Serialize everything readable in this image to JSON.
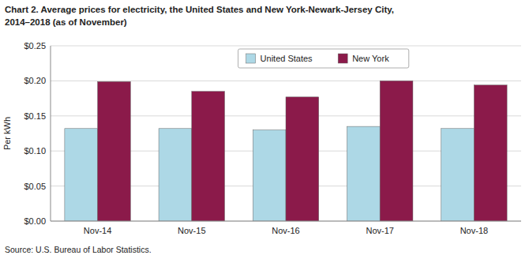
{
  "chart_data": {
    "type": "bar",
    "title": "Chart 2. Average prices for electricity, the United States and New York-Newark-Jersey City,",
    "subtitle": "2014–2018 (as of November)",
    "y_label": "Per kWh",
    "source": "Source: U.S. Bureau of Labor Statistics.",
    "categories": [
      "Nov-14",
      "Nov-15",
      "Nov-16",
      "Nov-17",
      "Nov-18"
    ],
    "series": [
      {
        "name": "United States",
        "color": "#ADD8E6",
        "values": [
          0.132,
          0.132,
          0.13,
          0.135,
          0.132
        ]
      },
      {
        "name": "New York",
        "color": "#8B1A4A",
        "values": [
          0.199,
          0.185,
          0.177,
          0.2,
          0.194
        ]
      }
    ],
    "ylim": [
      0.0,
      0.25
    ],
    "yticks": [
      {
        "value": 0.0,
        "label": "$0.00"
      },
      {
        "value": 0.05,
        "label": "$0.05"
      },
      {
        "value": 0.1,
        "label": "$0.10"
      },
      {
        "value": 0.15,
        "label": "$0.15"
      },
      {
        "value": 0.2,
        "label": "$0.20"
      },
      {
        "value": 0.25,
        "label": "$0.25"
      }
    ],
    "grid": true,
    "legend": "top"
  }
}
